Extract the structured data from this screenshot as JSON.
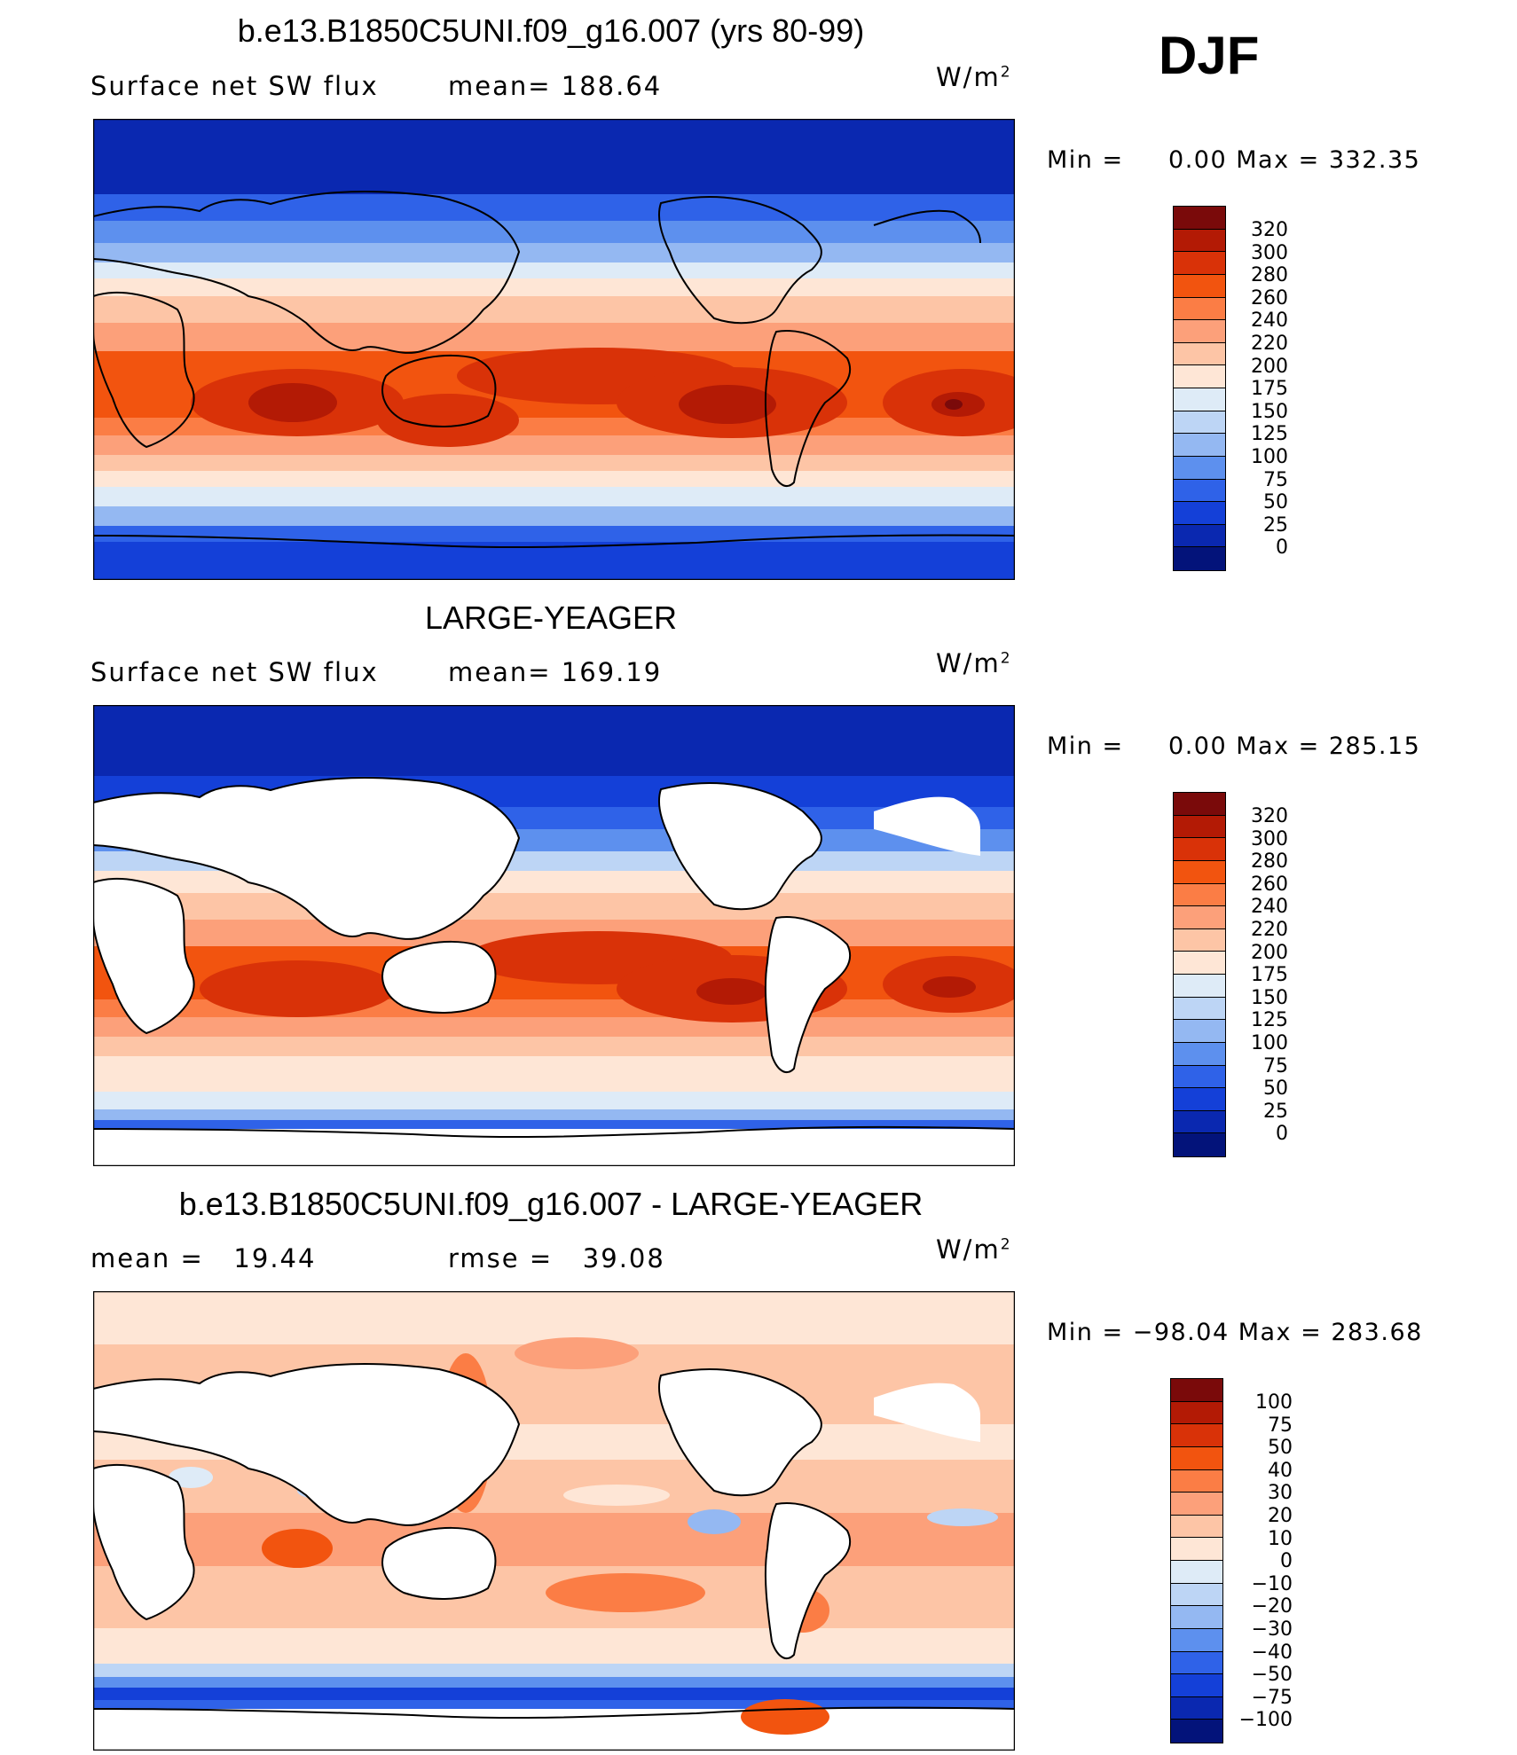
{
  "season": "DJF",
  "panels": [
    {
      "title": "b.e13.B1850C5UNI.f09_g16.007 (yrs 80-99)",
      "left_label": "Surface net SW flux",
      "stat_label": "mean=",
      "stat_value": "188.64",
      "unit_base": "W/m",
      "unit_exp": "2",
      "min_text": "Min =     0.00",
      "max_text": "Max = 332.35",
      "scale_labels": [
        "320",
        "300",
        "280",
        "260",
        "240",
        "220",
        "200",
        "175",
        "150",
        "125",
        "100",
        "75",
        "50",
        "25",
        "0"
      ],
      "land_masked": false
    },
    {
      "title": "LARGE-YEAGER",
      "left_label": "Surface net SW flux",
      "stat_label": "mean=",
      "stat_value": "169.19",
      "unit_base": "W/m",
      "unit_exp": "2",
      "min_text": "Min =     0.00",
      "max_text": "Max = 285.15",
      "scale_labels": [
        "320",
        "300",
        "280",
        "260",
        "240",
        "220",
        "200",
        "175",
        "150",
        "125",
        "100",
        "75",
        "50",
        "25",
        "0"
      ],
      "land_masked": true
    },
    {
      "title": "b.e13.B1850C5UNI.f09_g16.007 - LARGE-YEAGER",
      "left_label": "mean =",
      "left_value": "19.44",
      "stat_label": "rmse =",
      "stat_value": "39.08",
      "unit_base": "W/m",
      "unit_exp": "2",
      "min_text": "Min = −98.04",
      "max_text": "Max = 283.68",
      "scale_labels": [
        "100",
        "75",
        "50",
        "40",
        "30",
        "20",
        "10",
        "0",
        "−10",
        "−20",
        "−30",
        "−40",
        "−50",
        "−75",
        "−100"
      ],
      "land_masked": true
    }
  ],
  "colors": {
    "scale16": [
      "#7a0a0a",
      "#b31a05",
      "#d93208",
      "#f2540f",
      "#fb7d45",
      "#fca07a",
      "#fdc5a6",
      "#fee6d6",
      "#deebf7",
      "#bdd5f5",
      "#94b8f2",
      "#5d90ee",
      "#2f62e8",
      "#1440d8",
      "#0a28b0",
      "#03137a"
    ],
    "land": "#ffffff",
    "coast": "#000000"
  }
}
